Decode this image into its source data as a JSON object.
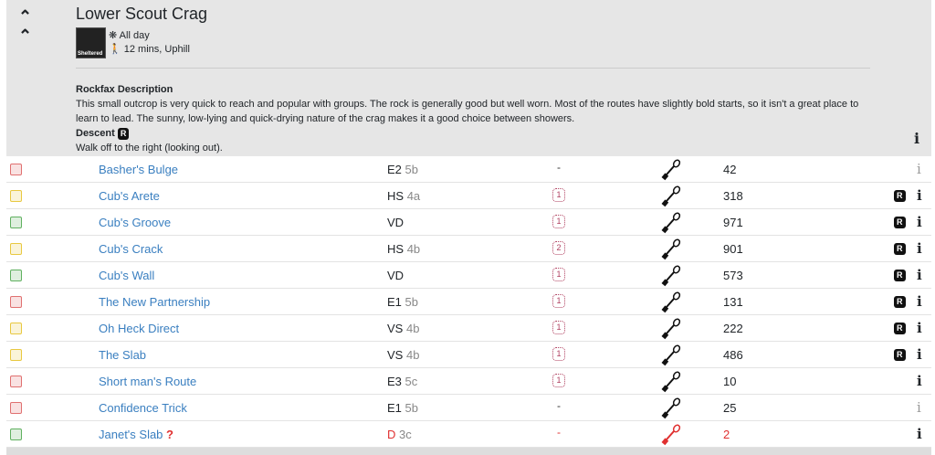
{
  "crag": {
    "title": "Lower Scout Crag",
    "shelter_badge": "Sheltered",
    "sun": "All day",
    "approach": "12 mins, Uphill",
    "desc_heading": "Rockfax Description",
    "description": "This small outcrop is very quick to reach and popular with groups. The rock is generally good but well worn. Most of the routes have slightly bold starts, so it isn't a great place to learn to lead. The sunny, low-lying and quick-drying nature of the crag makes it a good choice between showers.",
    "descent_heading": "Descent",
    "descent": "Walk off to the right (looking out).",
    "rockfax_badge": "R",
    "info_icon": "i"
  },
  "colors": {
    "red": "#e07070",
    "yellow": "#e8c840",
    "green": "#60b060",
    "link": "#3a7fc0",
    "star": "#b04060"
  },
  "routes": [
    {
      "name": "Basher's Bulge",
      "grade": "E2",
      "tech": "5b",
      "stars": "-",
      "ascents": "42",
      "color": "red",
      "rockfax": false,
      "info_dim": true
    },
    {
      "name": "Cub's Arete",
      "grade": "HS",
      "tech": "4a",
      "stars": "1",
      "ascents": "318",
      "color": "yellow",
      "rockfax": true
    },
    {
      "name": "Cub's Groove",
      "grade": "VD",
      "tech": "",
      "stars": "1",
      "ascents": "971",
      "color": "green",
      "rockfax": true
    },
    {
      "name": "Cub's Crack",
      "grade": "HS",
      "tech": "4b",
      "stars": "2",
      "ascents": "901",
      "color": "yellow",
      "rockfax": true
    },
    {
      "name": "Cub's Wall",
      "grade": "VD",
      "tech": "",
      "stars": "1",
      "ascents": "573",
      "color": "green",
      "rockfax": true
    },
    {
      "name": "The New Partnership",
      "grade": "E1",
      "tech": "5b",
      "stars": "1",
      "ascents": "131",
      "color": "red",
      "rockfax": true
    },
    {
      "name": "Oh Heck Direct",
      "grade": "VS",
      "tech": "4b",
      "stars": "1",
      "ascents": "222",
      "color": "yellow",
      "rockfax": true
    },
    {
      "name": "The Slab",
      "grade": "VS",
      "tech": "4b",
      "stars": "1",
      "ascents": "486",
      "color": "yellow",
      "rockfax": true
    },
    {
      "name": "Short man's Route",
      "grade": "E3",
      "tech": "5c",
      "stars": "1",
      "ascents": "10",
      "color": "red",
      "rockfax": false
    },
    {
      "name": "Confidence Trick",
      "grade": "E1",
      "tech": "5b",
      "stars": "-",
      "ascents": "25",
      "color": "red",
      "rockfax": false,
      "info_dim": true
    },
    {
      "name": "Janet's Slab",
      "grade": "D",
      "tech": "3c",
      "stars": "-",
      "ascents": "2",
      "color": "green",
      "rockfax": false,
      "unconfirmed": true,
      "unconfirmed_mark": "?"
    }
  ]
}
